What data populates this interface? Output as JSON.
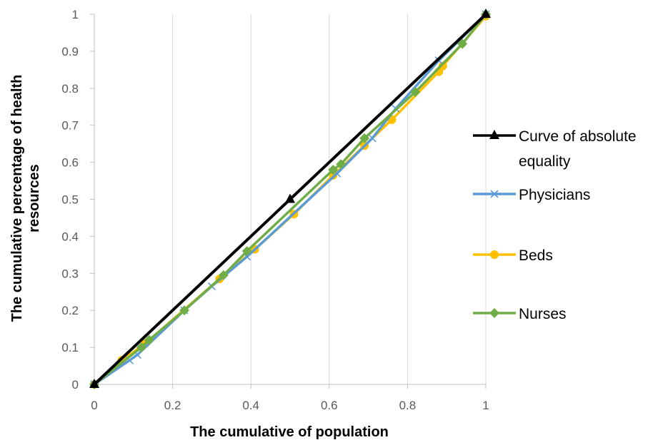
{
  "chart_data": {
    "type": "line",
    "title": "",
    "xlabel": "The cumulative of population",
    "ylabel": "The cumulative percentage of health resources",
    "xlim": [
      0,
      1
    ],
    "ylim": [
      0,
      1
    ],
    "x_ticks": [
      "0",
      "0.2",
      "0.4",
      "0.6",
      "0.8",
      "1"
    ],
    "y_ticks": [
      "0",
      "0.1",
      "0.2",
      "0.3",
      "0.4",
      "0.5",
      "0.6",
      "0.7",
      "0.8",
      "0.9",
      "1"
    ],
    "grid": "vertical",
    "legend_position": "right",
    "series": [
      {
        "name": "Curve of absolute equality",
        "legend_lines": [
          "Curve of absolute",
          "equality"
        ],
        "color": "#000000",
        "marker": "triangle",
        "points": [
          [
            0,
            0
          ],
          [
            0.5,
            0.5
          ],
          [
            1,
            1
          ]
        ]
      },
      {
        "name": "Physicians",
        "legend_lines": [
          "Physicians"
        ],
        "color": "#5b9bd5",
        "marker": "x",
        "points": [
          [
            0,
            0
          ],
          [
            0.09,
            0.065
          ],
          [
            0.11,
            0.08
          ],
          [
            0.23,
            0.2
          ],
          [
            0.3,
            0.265
          ],
          [
            0.39,
            0.345
          ],
          [
            0.62,
            0.57
          ],
          [
            0.71,
            0.665
          ],
          [
            0.77,
            0.745
          ],
          [
            0.88,
            0.875
          ],
          [
            1,
            1
          ]
        ]
      },
      {
        "name": "Beds",
        "legend_lines": [
          "Beds"
        ],
        "color": "#ffc000",
        "marker": "circle",
        "points": [
          [
            0,
            0
          ],
          [
            0.07,
            0.065
          ],
          [
            0.13,
            0.11
          ],
          [
            0.32,
            0.285
          ],
          [
            0.41,
            0.365
          ],
          [
            0.51,
            0.46
          ],
          [
            0.61,
            0.565
          ],
          [
            0.69,
            0.645
          ],
          [
            0.76,
            0.715
          ],
          [
            0.88,
            0.845
          ],
          [
            0.89,
            0.86
          ],
          [
            1,
            0.995
          ]
        ]
      },
      {
        "name": "Nurses",
        "legend_lines": [
          "Nurses"
        ],
        "color": "#70ad47",
        "marker": "diamond",
        "points": [
          [
            0,
            0
          ],
          [
            0.12,
            0.1
          ],
          [
            0.14,
            0.12
          ],
          [
            0.23,
            0.2
          ],
          [
            0.33,
            0.295
          ],
          [
            0.39,
            0.36
          ],
          [
            0.61,
            0.58
          ],
          [
            0.63,
            0.595
          ],
          [
            0.69,
            0.665
          ],
          [
            0.82,
            0.79
          ],
          [
            0.94,
            0.92
          ],
          [
            1,
            1
          ]
        ]
      }
    ]
  }
}
